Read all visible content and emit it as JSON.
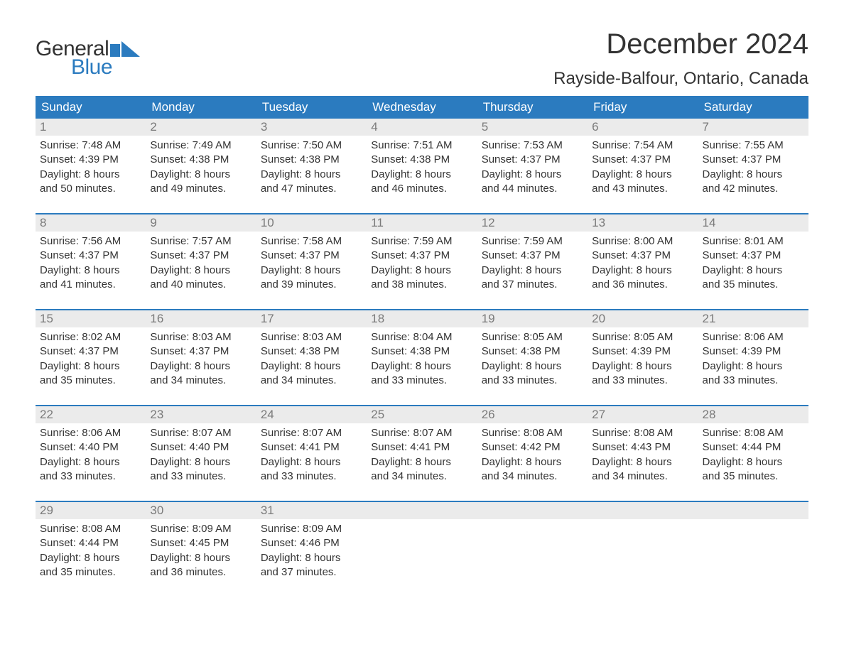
{
  "logo": {
    "general": "General",
    "blue": "Blue"
  },
  "page_title": "December 2024",
  "location": "Rayside-Balfour, Ontario, Canada",
  "colors": {
    "header_bg": "#2b7bbf",
    "daynum_bg": "#ebebeb",
    "daynum_text": "#7a7a7a",
    "body_text": "#333333",
    "logo_blue": "#2b7bbf",
    "background": "#ffffff"
  },
  "fonts": {
    "title_size_pt": 30,
    "location_size_pt": 18,
    "day_header_size_pt": 13,
    "cell_text_size_pt": 11
  },
  "day_headers": [
    "Sunday",
    "Monday",
    "Tuesday",
    "Wednesday",
    "Thursday",
    "Friday",
    "Saturday"
  ],
  "weeks": [
    [
      {
        "n": "1",
        "sunrise": "Sunrise: 7:48 AM",
        "sunset": "Sunset: 4:39 PM",
        "d1": "Daylight: 8 hours",
        "d2": "and 50 minutes."
      },
      {
        "n": "2",
        "sunrise": "Sunrise: 7:49 AM",
        "sunset": "Sunset: 4:38 PM",
        "d1": "Daylight: 8 hours",
        "d2": "and 49 minutes."
      },
      {
        "n": "3",
        "sunrise": "Sunrise: 7:50 AM",
        "sunset": "Sunset: 4:38 PM",
        "d1": "Daylight: 8 hours",
        "d2": "and 47 minutes."
      },
      {
        "n": "4",
        "sunrise": "Sunrise: 7:51 AM",
        "sunset": "Sunset: 4:38 PM",
        "d1": "Daylight: 8 hours",
        "d2": "and 46 minutes."
      },
      {
        "n": "5",
        "sunrise": "Sunrise: 7:53 AM",
        "sunset": "Sunset: 4:37 PM",
        "d1": "Daylight: 8 hours",
        "d2": "and 44 minutes."
      },
      {
        "n": "6",
        "sunrise": "Sunrise: 7:54 AM",
        "sunset": "Sunset: 4:37 PM",
        "d1": "Daylight: 8 hours",
        "d2": "and 43 minutes."
      },
      {
        "n": "7",
        "sunrise": "Sunrise: 7:55 AM",
        "sunset": "Sunset: 4:37 PM",
        "d1": "Daylight: 8 hours",
        "d2": "and 42 minutes."
      }
    ],
    [
      {
        "n": "8",
        "sunrise": "Sunrise: 7:56 AM",
        "sunset": "Sunset: 4:37 PM",
        "d1": "Daylight: 8 hours",
        "d2": "and 41 minutes."
      },
      {
        "n": "9",
        "sunrise": "Sunrise: 7:57 AM",
        "sunset": "Sunset: 4:37 PM",
        "d1": "Daylight: 8 hours",
        "d2": "and 40 minutes."
      },
      {
        "n": "10",
        "sunrise": "Sunrise: 7:58 AM",
        "sunset": "Sunset: 4:37 PM",
        "d1": "Daylight: 8 hours",
        "d2": "and 39 minutes."
      },
      {
        "n": "11",
        "sunrise": "Sunrise: 7:59 AM",
        "sunset": "Sunset: 4:37 PM",
        "d1": "Daylight: 8 hours",
        "d2": "and 38 minutes."
      },
      {
        "n": "12",
        "sunrise": "Sunrise: 7:59 AM",
        "sunset": "Sunset: 4:37 PM",
        "d1": "Daylight: 8 hours",
        "d2": "and 37 minutes."
      },
      {
        "n": "13",
        "sunrise": "Sunrise: 8:00 AM",
        "sunset": "Sunset: 4:37 PM",
        "d1": "Daylight: 8 hours",
        "d2": "and 36 minutes."
      },
      {
        "n": "14",
        "sunrise": "Sunrise: 8:01 AM",
        "sunset": "Sunset: 4:37 PM",
        "d1": "Daylight: 8 hours",
        "d2": "and 35 minutes."
      }
    ],
    [
      {
        "n": "15",
        "sunrise": "Sunrise: 8:02 AM",
        "sunset": "Sunset: 4:37 PM",
        "d1": "Daylight: 8 hours",
        "d2": "and 35 minutes."
      },
      {
        "n": "16",
        "sunrise": "Sunrise: 8:03 AM",
        "sunset": "Sunset: 4:37 PM",
        "d1": "Daylight: 8 hours",
        "d2": "and 34 minutes."
      },
      {
        "n": "17",
        "sunrise": "Sunrise: 8:03 AM",
        "sunset": "Sunset: 4:38 PM",
        "d1": "Daylight: 8 hours",
        "d2": "and 34 minutes."
      },
      {
        "n": "18",
        "sunrise": "Sunrise: 8:04 AM",
        "sunset": "Sunset: 4:38 PM",
        "d1": "Daylight: 8 hours",
        "d2": "and 33 minutes."
      },
      {
        "n": "19",
        "sunrise": "Sunrise: 8:05 AM",
        "sunset": "Sunset: 4:38 PM",
        "d1": "Daylight: 8 hours",
        "d2": "and 33 minutes."
      },
      {
        "n": "20",
        "sunrise": "Sunrise: 8:05 AM",
        "sunset": "Sunset: 4:39 PM",
        "d1": "Daylight: 8 hours",
        "d2": "and 33 minutes."
      },
      {
        "n": "21",
        "sunrise": "Sunrise: 8:06 AM",
        "sunset": "Sunset: 4:39 PM",
        "d1": "Daylight: 8 hours",
        "d2": "and 33 minutes."
      }
    ],
    [
      {
        "n": "22",
        "sunrise": "Sunrise: 8:06 AM",
        "sunset": "Sunset: 4:40 PM",
        "d1": "Daylight: 8 hours",
        "d2": "and 33 minutes."
      },
      {
        "n": "23",
        "sunrise": "Sunrise: 8:07 AM",
        "sunset": "Sunset: 4:40 PM",
        "d1": "Daylight: 8 hours",
        "d2": "and 33 minutes."
      },
      {
        "n": "24",
        "sunrise": "Sunrise: 8:07 AM",
        "sunset": "Sunset: 4:41 PM",
        "d1": "Daylight: 8 hours",
        "d2": "and 33 minutes."
      },
      {
        "n": "25",
        "sunrise": "Sunrise: 8:07 AM",
        "sunset": "Sunset: 4:41 PM",
        "d1": "Daylight: 8 hours",
        "d2": "and 34 minutes."
      },
      {
        "n": "26",
        "sunrise": "Sunrise: 8:08 AM",
        "sunset": "Sunset: 4:42 PM",
        "d1": "Daylight: 8 hours",
        "d2": "and 34 minutes."
      },
      {
        "n": "27",
        "sunrise": "Sunrise: 8:08 AM",
        "sunset": "Sunset: 4:43 PM",
        "d1": "Daylight: 8 hours",
        "d2": "and 34 minutes."
      },
      {
        "n": "28",
        "sunrise": "Sunrise: 8:08 AM",
        "sunset": "Sunset: 4:44 PM",
        "d1": "Daylight: 8 hours",
        "d2": "and 35 minutes."
      }
    ],
    [
      {
        "n": "29",
        "sunrise": "Sunrise: 8:08 AM",
        "sunset": "Sunset: 4:44 PM",
        "d1": "Daylight: 8 hours",
        "d2": "and 35 minutes."
      },
      {
        "n": "30",
        "sunrise": "Sunrise: 8:09 AM",
        "sunset": "Sunset: 4:45 PM",
        "d1": "Daylight: 8 hours",
        "d2": "and 36 minutes."
      },
      {
        "n": "31",
        "sunrise": "Sunrise: 8:09 AM",
        "sunset": "Sunset: 4:46 PM",
        "d1": "Daylight: 8 hours",
        "d2": "and 37 minutes."
      },
      null,
      null,
      null,
      null
    ]
  ]
}
